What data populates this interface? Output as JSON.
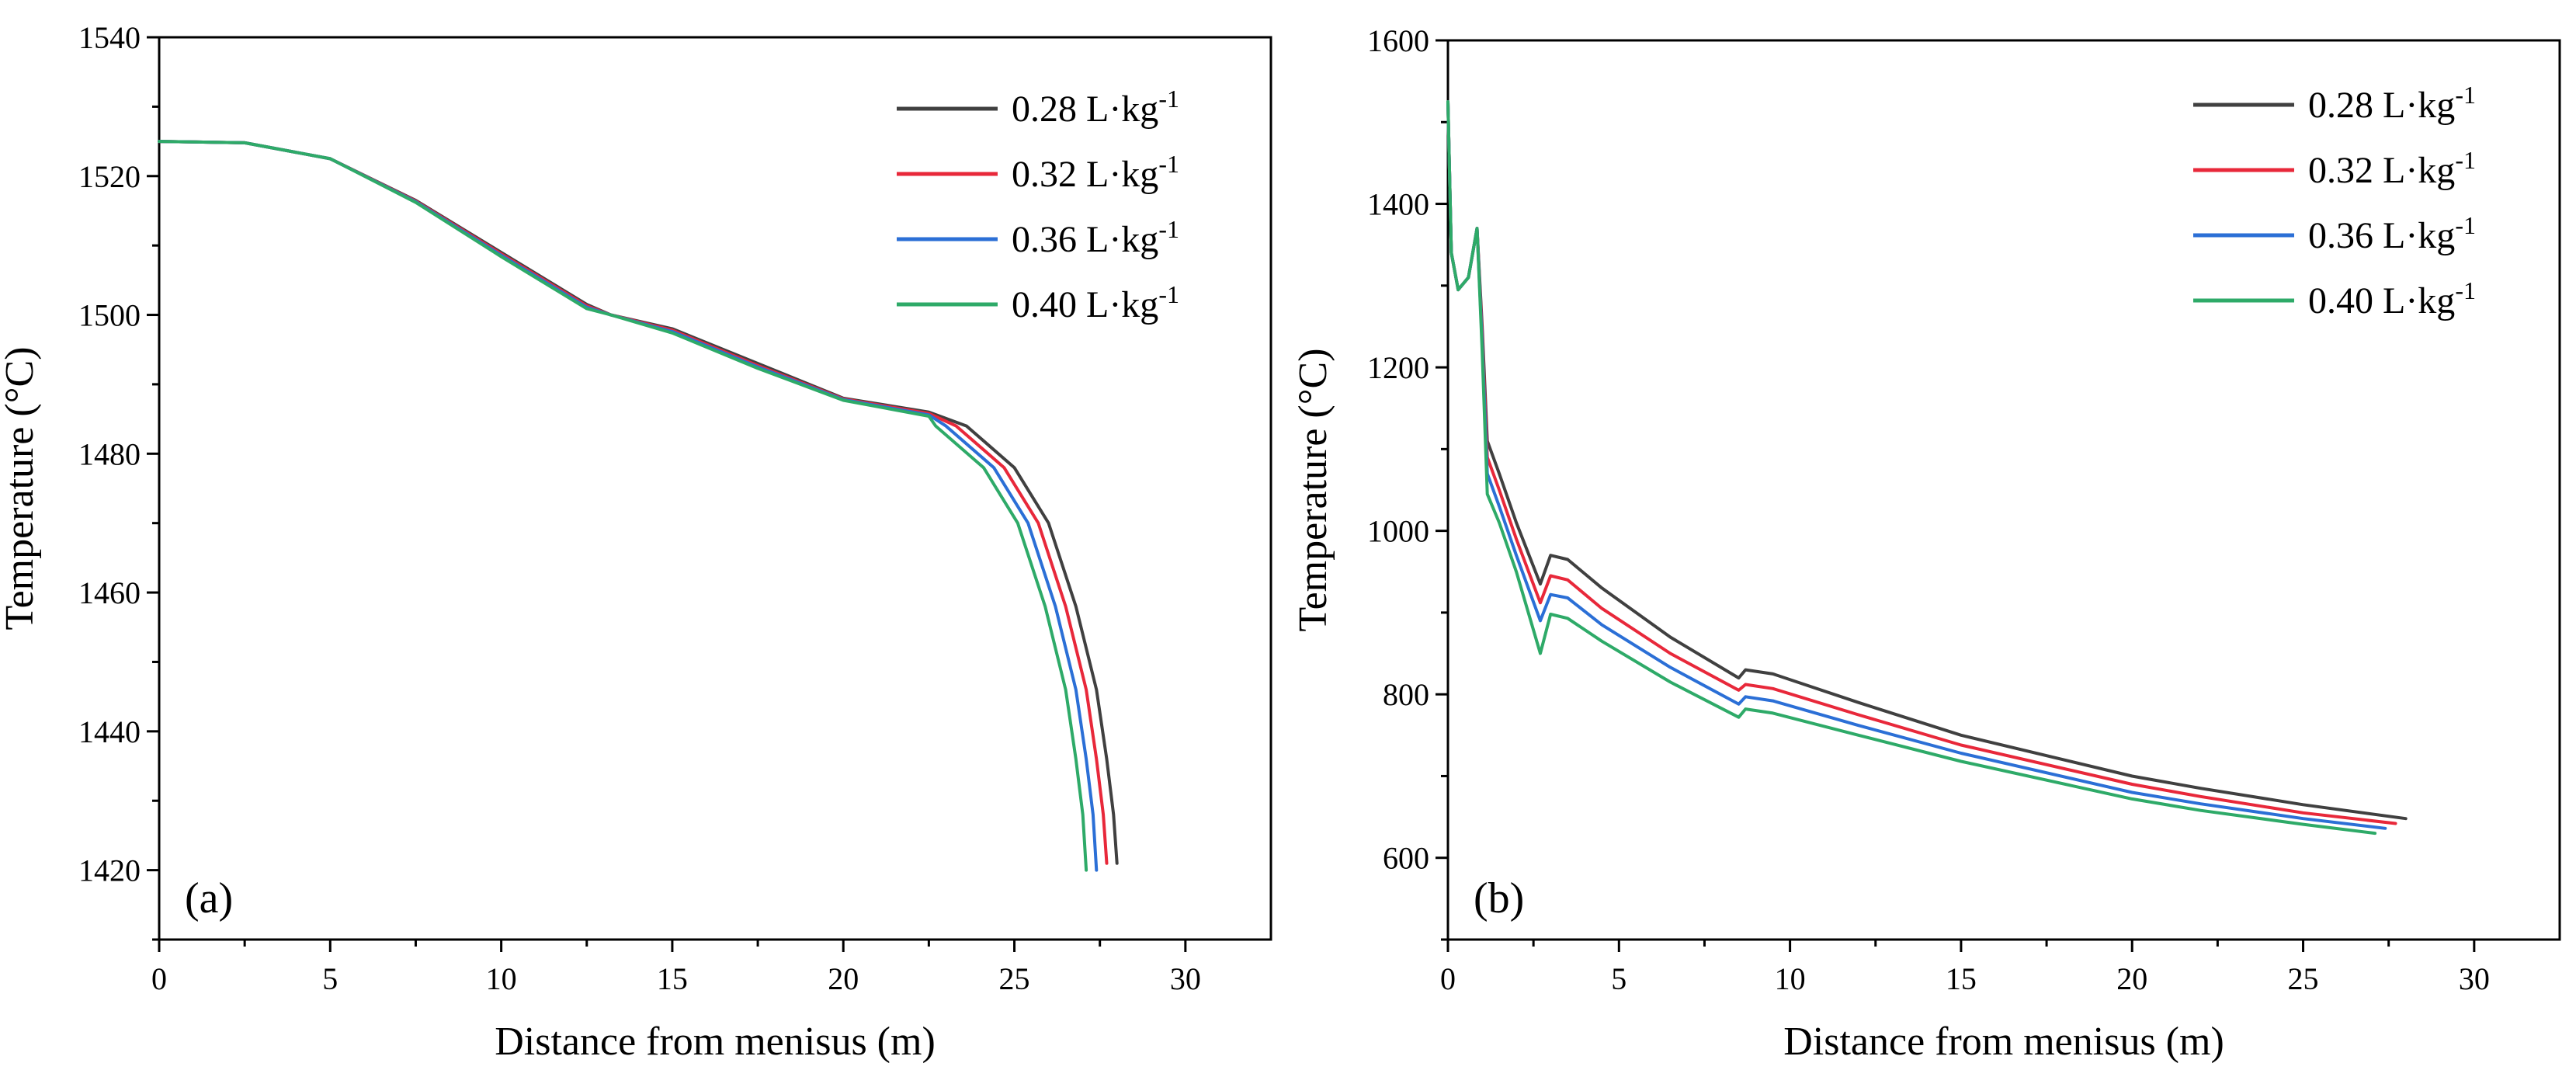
{
  "chart_data": [
    {
      "type": "line",
      "panel_label": "(a)",
      "xlabel": "Distance from menisus (m)",
      "ylabel": "Temperature (°C)",
      "xlim": [
        0,
        32.5
      ],
      "ylim": [
        1410,
        1540
      ],
      "xticks": [
        0,
        5,
        10,
        15,
        20,
        25,
        30
      ],
      "yticks": [
        1420,
        1440,
        1460,
        1480,
        1500,
        1520,
        1540
      ],
      "xtick_labels": [
        "0",
        "5",
        "10",
        "15",
        "20",
        "25",
        "30"
      ],
      "ytick_labels": [
        "1420",
        "1440",
        "1460",
        "1480",
        "1500",
        "1520",
        "1540"
      ],
      "legend_position": "top-right",
      "series": [
        {
          "name": "0.28",
          "unit": "L·kg",
          "exp": "-1",
          "color": "#404040",
          "x": [
            0,
            2.5,
            5,
            7.5,
            10,
            12.5,
            13.2,
            15,
            17.5,
            20,
            22.5,
            23.6,
            25,
            26,
            26.8,
            27.4,
            27.7,
            27.9,
            28.0
          ],
          "y": [
            1525,
            1524.8,
            1522.5,
            1516.5,
            1509,
            1501.5,
            1500,
            1498,
            1493,
            1488,
            1486,
            1484,
            1478,
            1470,
            1458,
            1446,
            1436,
            1428,
            1421
          ]
        },
        {
          "name": "0.32",
          "unit": "L·kg",
          "exp": "-1",
          "color": "#e8283a",
          "x": [
            0,
            2.5,
            5,
            7.5,
            10,
            12.5,
            13.2,
            15,
            17.5,
            20,
            22.5,
            23.3,
            24.7,
            25.7,
            26.5,
            27.1,
            27.4,
            27.6,
            27.7
          ],
          "y": [
            1525,
            1524.8,
            1522.5,
            1516.4,
            1508.8,
            1501.3,
            1500,
            1497.8,
            1492.7,
            1487.9,
            1485.8,
            1484,
            1478,
            1470,
            1458,
            1446,
            1436,
            1428,
            1421
          ]
        },
        {
          "name": "0.36",
          "unit": "L·kg",
          "exp": "-1",
          "color": "#2b6fd6",
          "x": [
            0,
            2.5,
            5,
            7.5,
            10,
            12.5,
            13.2,
            15,
            17.5,
            20,
            22.5,
            23.0,
            24.4,
            25.4,
            26.2,
            26.8,
            27.1,
            27.3,
            27.4
          ],
          "y": [
            1525,
            1524.8,
            1522.5,
            1516.3,
            1508.6,
            1501.1,
            1500,
            1497.6,
            1492.5,
            1487.8,
            1485.6,
            1484,
            1478,
            1470,
            1458,
            1446,
            1436,
            1428,
            1420
          ]
        },
        {
          "name": "0.40",
          "unit": "L·kg",
          "exp": "-1",
          "color": "#2eaa68",
          "x": [
            0,
            2.5,
            5,
            7.5,
            10,
            12.5,
            13.2,
            15,
            17.5,
            20,
            22.5,
            22.7,
            24.1,
            25.1,
            25.9,
            26.5,
            26.8,
            27.0,
            27.1
          ],
          "y": [
            1525,
            1524.8,
            1522.5,
            1516.2,
            1508.4,
            1500.9,
            1500,
            1497.4,
            1492.3,
            1487.7,
            1485.4,
            1484,
            1478,
            1470,
            1458,
            1446,
            1436,
            1428,
            1420
          ]
        }
      ]
    },
    {
      "type": "line",
      "panel_label": "(b)",
      "xlabel": "Distance from menisus (m)",
      "ylabel": "Temperature (°C)",
      "xlim": [
        0,
        32.5
      ],
      "ylim": [
        500,
        1600
      ],
      "xticks": [
        0,
        5,
        10,
        15,
        20,
        25,
        30
      ],
      "yticks": [
        600,
        800,
        1000,
        1200,
        1400,
        1600
      ],
      "xtick_labels": [
        "0",
        "5",
        "10",
        "15",
        "20",
        "25",
        "30"
      ],
      "ytick_labels": [
        "600",
        "800",
        "1000",
        "1200",
        "1400",
        "1600"
      ],
      "legend_position": "top-right",
      "series": [
        {
          "name": "0.28",
          "unit": "L·kg",
          "exp": "-1",
          "color": "#404040",
          "x": [
            0,
            0.1,
            0.3,
            0.6,
            0.85,
            1.0,
            1.15,
            1.5,
            2.0,
            2.7,
            3.0,
            3.5,
            4.5,
            6.5,
            8.5,
            8.7,
            9.5,
            12,
            15,
            20,
            22,
            25,
            28
          ],
          "y": [
            1525,
            1340,
            1295,
            1310,
            1370,
            1250,
            1110,
            1070,
            1010,
            935,
            970,
            965,
            930,
            870,
            820,
            830,
            825,
            790,
            750,
            700,
            685,
            665,
            648
          ]
        },
        {
          "name": "0.32",
          "unit": "L·kg",
          "exp": "-1",
          "color": "#e8283a",
          "x": [
            0,
            0.1,
            0.3,
            0.6,
            0.85,
            1.0,
            1.15,
            1.5,
            2.0,
            2.7,
            3.0,
            3.5,
            4.5,
            6.5,
            8.5,
            8.7,
            9.5,
            12,
            15,
            20,
            22,
            25,
            27.7
          ],
          "y": [
            1525,
            1340,
            1295,
            1310,
            1370,
            1240,
            1090,
            1050,
            990,
            912,
            945,
            940,
            905,
            850,
            805,
            812,
            807,
            775,
            738,
            690,
            675,
            655,
            642
          ]
        },
        {
          "name": "0.36",
          "unit": "L·kg",
          "exp": "-1",
          "color": "#2b6fd6",
          "x": [
            0,
            0.1,
            0.3,
            0.6,
            0.85,
            1.0,
            1.15,
            1.5,
            2.0,
            2.7,
            3.0,
            3.5,
            4.5,
            6.5,
            8.5,
            8.7,
            9.5,
            12,
            15,
            20,
            22,
            25,
            27.4
          ],
          "y": [
            1525,
            1340,
            1295,
            1310,
            1370,
            1230,
            1070,
            1030,
            970,
            890,
            922,
            918,
            885,
            833,
            788,
            797,
            792,
            762,
            728,
            680,
            666,
            648,
            636
          ]
        },
        {
          "name": "0.40",
          "unit": "L·kg",
          "exp": "-1",
          "color": "#2eaa68",
          "x": [
            0,
            0.1,
            0.3,
            0.6,
            0.85,
            1.0,
            1.15,
            1.5,
            2.0,
            2.7,
            3.0,
            3.5,
            4.5,
            6.5,
            8.5,
            8.7,
            9.5,
            12,
            15,
            20,
            22,
            25,
            27.1
          ],
          "y": [
            1525,
            1340,
            1295,
            1310,
            1370,
            1220,
            1045,
            1010,
            950,
            850,
            898,
            893,
            865,
            815,
            772,
            782,
            777,
            750,
            718,
            672,
            658,
            641,
            630
          ]
        }
      ]
    }
  ]
}
